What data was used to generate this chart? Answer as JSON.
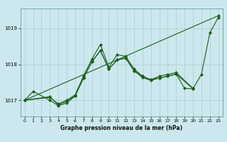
{
  "title": "Graphe pression niveau de la mer (hPa)",
  "bg_color": "#cce8ee",
  "grid_color": "#aacccc",
  "line_color": "#1a5e1a",
  "xlim": [
    -0.5,
    23.5
  ],
  "ylim": [
    1016.55,
    1019.55
  ],
  "yticks": [
    1017,
    1018,
    1019
  ],
  "xticks": [
    0,
    1,
    2,
    3,
    4,
    5,
    6,
    7,
    8,
    9,
    10,
    11,
    12,
    13,
    14,
    15,
    16,
    17,
    18,
    19,
    20,
    21,
    22,
    23
  ],
  "line1_x": [
    0,
    23
  ],
  "line1_y": [
    1017.0,
    1019.35
  ],
  "line2_x": [
    0,
    1,
    3,
    4,
    5,
    6,
    7,
    8,
    9,
    10,
    11,
    12,
    13,
    14,
    15,
    16,
    17,
    18,
    19,
    20,
    21,
    22,
    23
  ],
  "line2_y": [
    1017.0,
    1017.25,
    1017.0,
    1016.85,
    1016.92,
    1017.12,
    1017.62,
    1018.07,
    1018.38,
    1017.87,
    1018.12,
    1018.18,
    1017.82,
    1017.67,
    1017.57,
    1017.62,
    1017.67,
    1017.73,
    1017.33,
    1017.32,
    1017.72,
    1018.87,
    1019.3
  ],
  "line3_x": [
    0,
    3,
    4,
    5,
    6,
    7,
    8,
    9,
    10,
    11,
    12,
    13,
    14,
    15,
    16,
    17,
    18,
    20
  ],
  "line3_y": [
    1017.0,
    1017.08,
    1016.9,
    1017.0,
    1017.15,
    1017.68,
    1018.15,
    1018.55,
    1017.92,
    1018.27,
    1018.22,
    1017.87,
    1017.67,
    1017.57,
    1017.67,
    1017.72,
    1017.77,
    1017.33
  ],
  "line4_x": [
    0,
    3,
    4,
    5,
    6,
    7,
    8,
    9,
    10,
    11,
    12,
    13,
    14,
    15,
    16,
    17,
    18,
    20
  ],
  "line4_y": [
    1017.0,
    1017.1,
    1016.87,
    1016.97,
    1017.12,
    1017.63,
    1018.08,
    1018.38,
    1017.87,
    1018.12,
    1018.17,
    1017.82,
    1017.63,
    1017.55,
    1017.62,
    1017.67,
    1017.73,
    1017.32
  ]
}
